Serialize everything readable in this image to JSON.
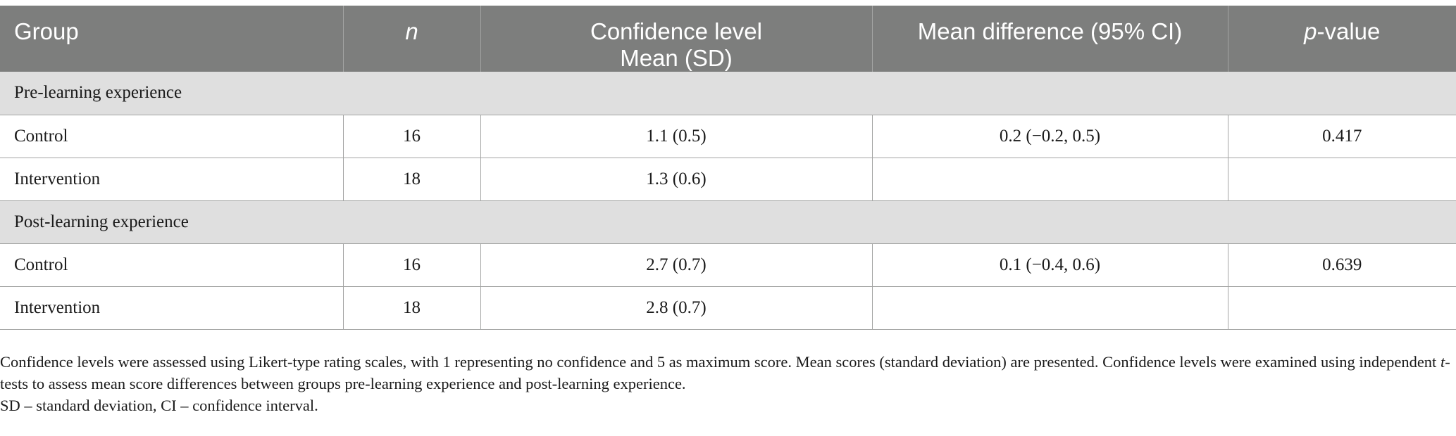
{
  "table": {
    "headers": {
      "group": "Group",
      "n": "n",
      "confidence_line1": "Confidence level",
      "confidence_line2": "Mean (SD)",
      "mean_difference": "Mean difference (95% CI)",
      "p_value_italic": "p",
      "p_value_rest": "-value"
    },
    "sections": [
      {
        "title": "Pre-learning experience",
        "rows": [
          {
            "group": "Control",
            "n": "16",
            "confidence": "1.1 (0.5)",
            "mean_difference": "0.2 (−0.2, 0.5)",
            "p_value": "0.417"
          },
          {
            "group": "Intervention",
            "n": "18",
            "confidence": "1.3 (0.6)",
            "mean_difference": "",
            "p_value": ""
          }
        ]
      },
      {
        "title": "Post-learning experience",
        "rows": [
          {
            "group": "Control",
            "n": "16",
            "confidence": "2.7 (0.7)",
            "mean_difference": "0.1 (−0.4, 0.6)",
            "p_value": "0.639"
          },
          {
            "group": "Intervention",
            "n": "18",
            "confidence": "2.8 (0.7)",
            "mean_difference": "",
            "p_value": ""
          }
        ]
      }
    ]
  },
  "footnotes": {
    "note1_part1": "Confidence levels were assessed using Likert-type rating scales, with 1 representing no confidence and 5 as maximum score. Mean scores (standard deviation) are presented. Confidence levels were examined using independent ",
    "note1_italic": "t",
    "note1_part2": "-tests to assess mean score differences between groups pre-learning experience and post-learning experience.",
    "note2": "SD – standard deviation, CI – confidence interval."
  }
}
